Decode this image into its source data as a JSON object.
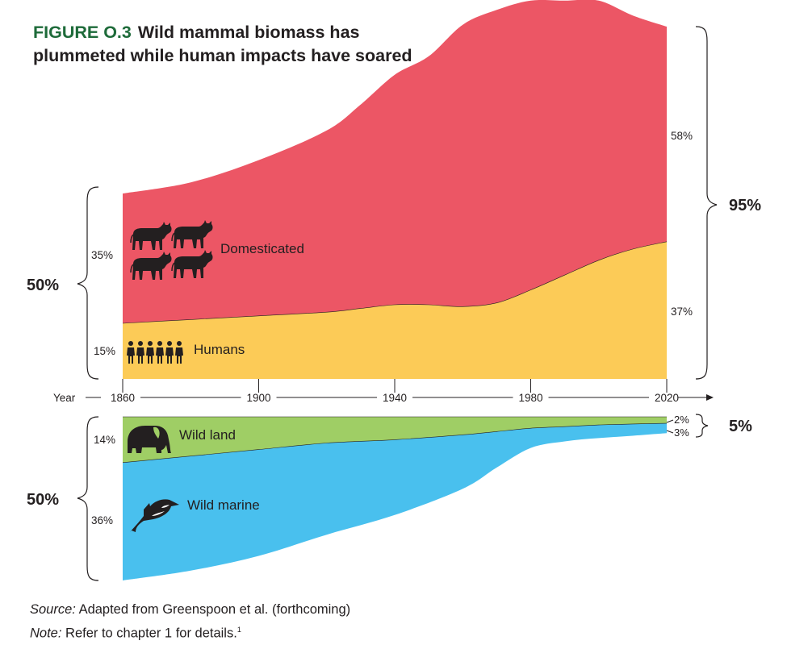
{
  "title": {
    "figure_number": "FIGURE O.3",
    "text": "Wild mammal biomass has plummeted while human impacts have soared"
  },
  "source": {
    "label": "Source:",
    "text": "Adapted from Greenspoon et al. (forthcoming)"
  },
  "note": {
    "label": "Note:",
    "text": "Refer to chapter 1 for details.",
    "sup": "1"
  },
  "colors": {
    "domesticated": "#ec5665",
    "humans": "#fccb57",
    "wild_land": "#9fce65",
    "wild_marine": "#49c0ee",
    "title_number": "#1e6b3a"
  },
  "chart_data": {
    "type": "area",
    "xlabel": "Year",
    "x_ticks": [
      "1860",
      "1900",
      "1940",
      "1980",
      "2020"
    ],
    "xlim": [
      1860,
      2020
    ],
    "panels": [
      {
        "name": "top",
        "group_total_start": "50%",
        "group_total_end": "95%",
        "start_labels": [
          "35%",
          "15%"
        ],
        "end_labels": [
          "58%",
          "37%"
        ],
        "series": [
          {
            "name": "Humans",
            "color": "#fccb57",
            "x": [
              1860,
              1880,
              1900,
              1920,
              1930,
              1940,
              1950,
              1960,
              1970,
              1980,
              1990,
              2000,
              2010,
              2020
            ],
            "values": [
              15,
              16,
              17,
              18,
              19,
              20,
              20,
              19.5,
              20.5,
              24,
              28,
              32,
              35,
              37
            ]
          },
          {
            "name": "Domesticated",
            "color": "#ec5665",
            "x": [
              1860,
              1880,
              1900,
              1920,
              1930,
              1940,
              1950,
              1960,
              1970,
              1980,
              1990,
              2000,
              2010,
              2020
            ],
            "values": [
              35,
              37,
              42,
              49,
              55,
              62,
              67,
              76,
              79,
              78,
              74,
              70,
              63,
              58
            ]
          }
        ]
      },
      {
        "name": "bottom",
        "group_total_start": "50%",
        "group_total_end": "5%",
        "start_labels": [
          "14%",
          "36%"
        ],
        "end_labels": [
          "2%",
          "3%"
        ],
        "series": [
          {
            "name": "Wild land",
            "color": "#9fce65",
            "x": [
              1860,
              1880,
              1900,
              1920,
              1940,
              1960,
              1970,
              1980,
              1990,
              2000,
              2010,
              2020
            ],
            "values": [
              14,
              12,
              10,
              8,
              7,
              5.5,
              4.5,
              3.5,
              3,
              2.5,
              2.2,
              2
            ]
          },
          {
            "name": "Wild marine",
            "color": "#49c0ee",
            "x": [
              1860,
              1880,
              1900,
              1920,
              1940,
              1960,
              1970,
              1980,
              1990,
              2000,
              2010,
              2020
            ],
            "values": [
              36,
              35,
              32.5,
              28,
              23,
              16.5,
              11,
              6,
              4.5,
              4,
              3.6,
              3
            ]
          }
        ]
      }
    ]
  }
}
